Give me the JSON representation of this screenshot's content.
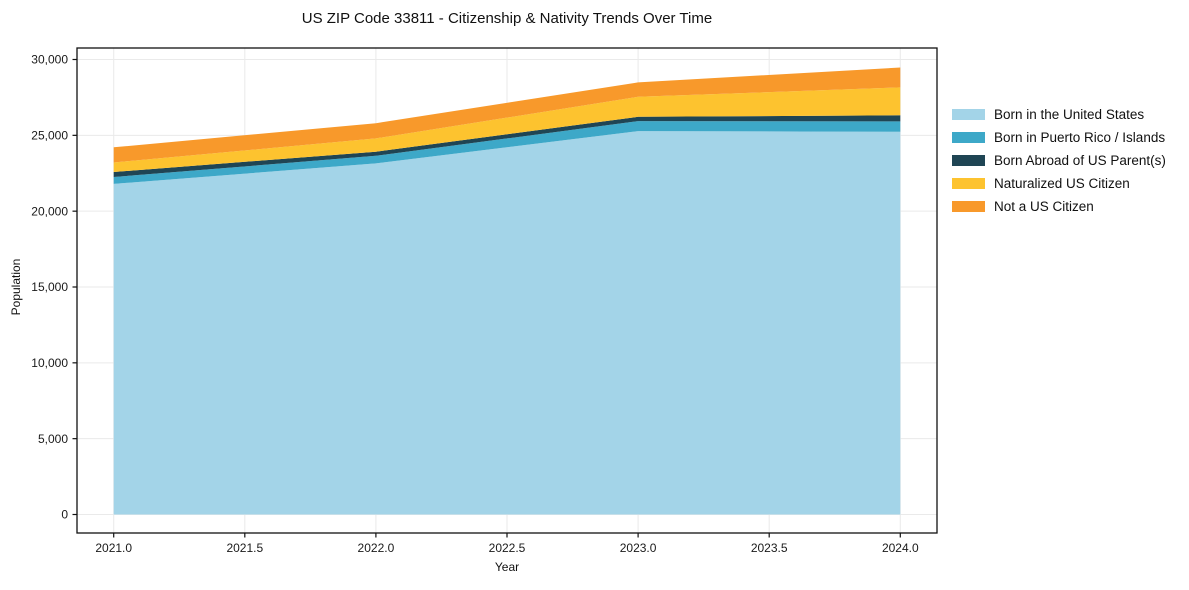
{
  "chart_data": {
    "type": "area",
    "stacked": true,
    "title": "US ZIP Code 33811 - Citizenship & Nativity Trends Over Time",
    "xlabel": "Year",
    "ylabel": "Population",
    "x": [
      2021,
      2022,
      2023,
      2024
    ],
    "series": [
      {
        "name": "Born in the United States",
        "color": "#a3d4e8",
        "values": [
          21800,
          23150,
          25280,
          25230
        ]
      },
      {
        "name": "Born in Puerto Rico / Islands",
        "color": "#3da8c8",
        "values": [
          450,
          500,
          660,
          690
        ]
      },
      {
        "name": "Born Abroad of US Parent(s)",
        "color": "#1f4554",
        "values": [
          330,
          270,
          280,
          400
        ]
      },
      {
        "name": "Naturalized US Citizen",
        "color": "#fdc32f",
        "values": [
          630,
          880,
          1320,
          1840
        ]
      },
      {
        "name": "Not a US Citizen",
        "color": "#f8992b",
        "values": [
          1000,
          1000,
          950,
          1310
        ]
      }
    ],
    "x_ticks": [
      2021.0,
      2021.5,
      2022.0,
      2022.5,
      2023.0,
      2023.5,
      2024.0
    ],
    "x_tick_labels": [
      "2021.0",
      "2021.5",
      "2022.0",
      "2022.5",
      "2023.0",
      "2023.5",
      "2024.0"
    ],
    "y_ticks": [
      0,
      5000,
      10000,
      15000,
      20000,
      25000,
      30000
    ],
    "y_tick_labels": [
      "0",
      "5,000",
      "10,000",
      "15,000",
      "20,000",
      "25,000",
      "30,000"
    ],
    "xlim": [
      2020.86,
      2024.14
    ],
    "ylim": [
      0,
      30000
    ],
    "grid": true,
    "grid_color": "#eaeaea",
    "axis_color": "#111111",
    "legend_position": "right"
  }
}
